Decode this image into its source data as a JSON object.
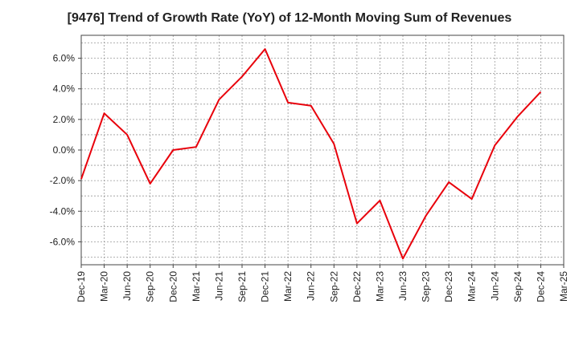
{
  "chart_data": {
    "type": "line",
    "title": "[9476]  Trend of Growth Rate (YoY) of 12-Month Moving Sum of Revenues",
    "xlabel": "",
    "ylabel": "",
    "ylim": [
      -7.5,
      7.5
    ],
    "y_ticks": [
      -6.0,
      -4.0,
      -2.0,
      0.0,
      2.0,
      4.0,
      6.0
    ],
    "y_tick_labels": [
      "-6.0%",
      "-4.0%",
      "-2.0%",
      "0.0%",
      "2.0%",
      "4.0%",
      "6.0%"
    ],
    "x_tick_labels": [
      "Dec-19",
      "Mar-20",
      "Jun-20",
      "Sep-20",
      "Dec-20",
      "Mar-21",
      "Jun-21",
      "Sep-21",
      "Dec-21",
      "Mar-22",
      "Jun-22",
      "Sep-22",
      "Dec-22",
      "Mar-23",
      "Jun-23",
      "Sep-23",
      "Dec-23",
      "Mar-24",
      "Jun-24",
      "Sep-24",
      "Dec-24",
      "Mar-25"
    ],
    "grid": true,
    "series": [
      {
        "color": "#e8000b",
        "x": [
          "Dec-19",
          "Mar-20",
          "Jun-20",
          "Sep-20",
          "Dec-20",
          "Mar-21",
          "Jun-21",
          "Sep-21",
          "Dec-21",
          "Mar-22",
          "Jun-22",
          "Sep-22",
          "Dec-22",
          "Mar-23",
          "Jun-23",
          "Sep-23",
          "Dec-23",
          "Mar-24",
          "Jun-24",
          "Sep-24",
          "Dec-24"
        ],
        "values": [
          -1.9,
          2.4,
          1.0,
          -2.2,
          0.0,
          0.2,
          3.3,
          4.8,
          6.6,
          3.1,
          2.9,
          0.4,
          -4.8,
          -3.3,
          -7.1,
          -4.3,
          -2.1,
          -3.2,
          0.3,
          2.2,
          3.8
        ]
      }
    ]
  }
}
